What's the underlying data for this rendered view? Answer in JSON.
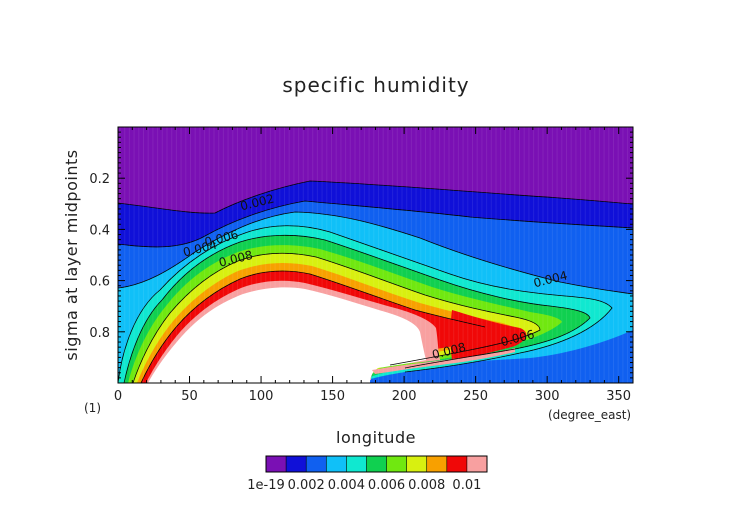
{
  "chart_data": {
    "type": "contour",
    "title": "specific humidity",
    "xlabel": "longitude",
    "ylabel": "sigma at layer midpoints",
    "x_unit": "(degree_east)",
    "y_unit": "(1)",
    "xlim": [
      0,
      360
    ],
    "ylim": [
      1.0,
      0.0
    ],
    "x_ticks": [
      "0",
      "50",
      "100",
      "150",
      "200",
      "250",
      "300",
      "350"
    ],
    "y_ticks": [
      "0.2",
      "0.4",
      "0.6",
      "0.8"
    ],
    "contour_labels": [
      {
        "text": "0.002",
        "x": 98,
        "y": 0.31
      },
      {
        "text": "0.004",
        "x": 58,
        "y": 0.49
      },
      {
        "text": "0.006",
        "x": 73,
        "y": 0.45
      },
      {
        "text": "0.008",
        "x": 83,
        "y": 0.53
      },
      {
        "text": "0.004",
        "x": 303,
        "y": 0.61
      },
      {
        "text": "0.006",
        "x": 280,
        "y": 0.84
      },
      {
        "text": "0.008",
        "x": 232,
        "y": 0.89
      }
    ],
    "colorbar": {
      "colors": [
        "#7a10b4",
        "#1010d8",
        "#1060f0",
        "#10c0f8",
        "#10e8d0",
        "#10d050",
        "#70e810",
        "#d8f010",
        "#f8a000",
        "#f00808",
        "#f8a0a0"
      ],
      "labels": [
        "1e-19",
        "0.002",
        "0.004",
        "0.006",
        "0.008",
        "0.01"
      ]
    }
  }
}
